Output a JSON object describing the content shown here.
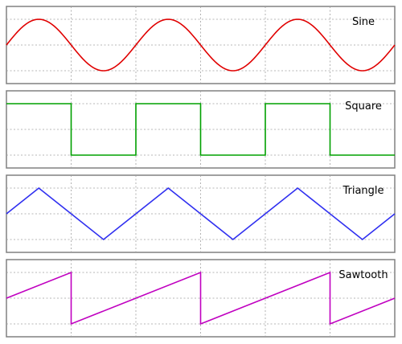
{
  "chart_data": [
    {
      "type": "line",
      "label": "Sine",
      "waveform": "sine",
      "color": "#e00000",
      "x": [
        0,
        0.25,
        0.5,
        0.75,
        1,
        1.25,
        1.5,
        1.75,
        2,
        2.25,
        2.5,
        2.75,
        3
      ],
      "y": [
        0,
        1,
        0,
        -1,
        0,
        1,
        0,
        -1,
        0,
        1,
        0,
        -1,
        0
      ],
      "xlim": [
        0,
        3
      ],
      "ylim": [
        -1,
        1
      ],
      "grid": true
    },
    {
      "type": "line",
      "label": "Square",
      "waveform": "square",
      "color": "#00a000",
      "x": [
        0,
        0.5,
        0.5,
        1,
        1,
        1.5,
        1.5,
        2,
        2,
        2.5,
        2.5,
        3
      ],
      "y": [
        1,
        1,
        -1,
        -1,
        1,
        1,
        -1,
        -1,
        1,
        1,
        -1,
        -1
      ],
      "xlim": [
        0,
        3
      ],
      "ylim": [
        -1,
        1
      ],
      "grid": true
    },
    {
      "type": "line",
      "label": "Triangle",
      "waveform": "triangle",
      "color": "#3030f0",
      "x": [
        0,
        0.25,
        0.75,
        1.25,
        1.75,
        2.25,
        2.75,
        3
      ],
      "y": [
        0,
        1,
        -1,
        1,
        -1,
        1,
        -1,
        0
      ],
      "xlim": [
        0,
        3
      ],
      "ylim": [
        -1,
        1
      ],
      "grid": true
    },
    {
      "type": "line",
      "label": "Sawtooth",
      "waveform": "sawtooth",
      "color": "#c000c0",
      "x": [
        0,
        0.5,
        0.5,
        1.5,
        1.5,
        2.5,
        2.5,
        3
      ],
      "y": [
        0,
        1,
        -1,
        1,
        -1,
        1,
        -1,
        0
      ],
      "xlim": [
        0,
        3
      ],
      "ylim": [
        -1,
        1
      ],
      "grid": true
    }
  ]
}
